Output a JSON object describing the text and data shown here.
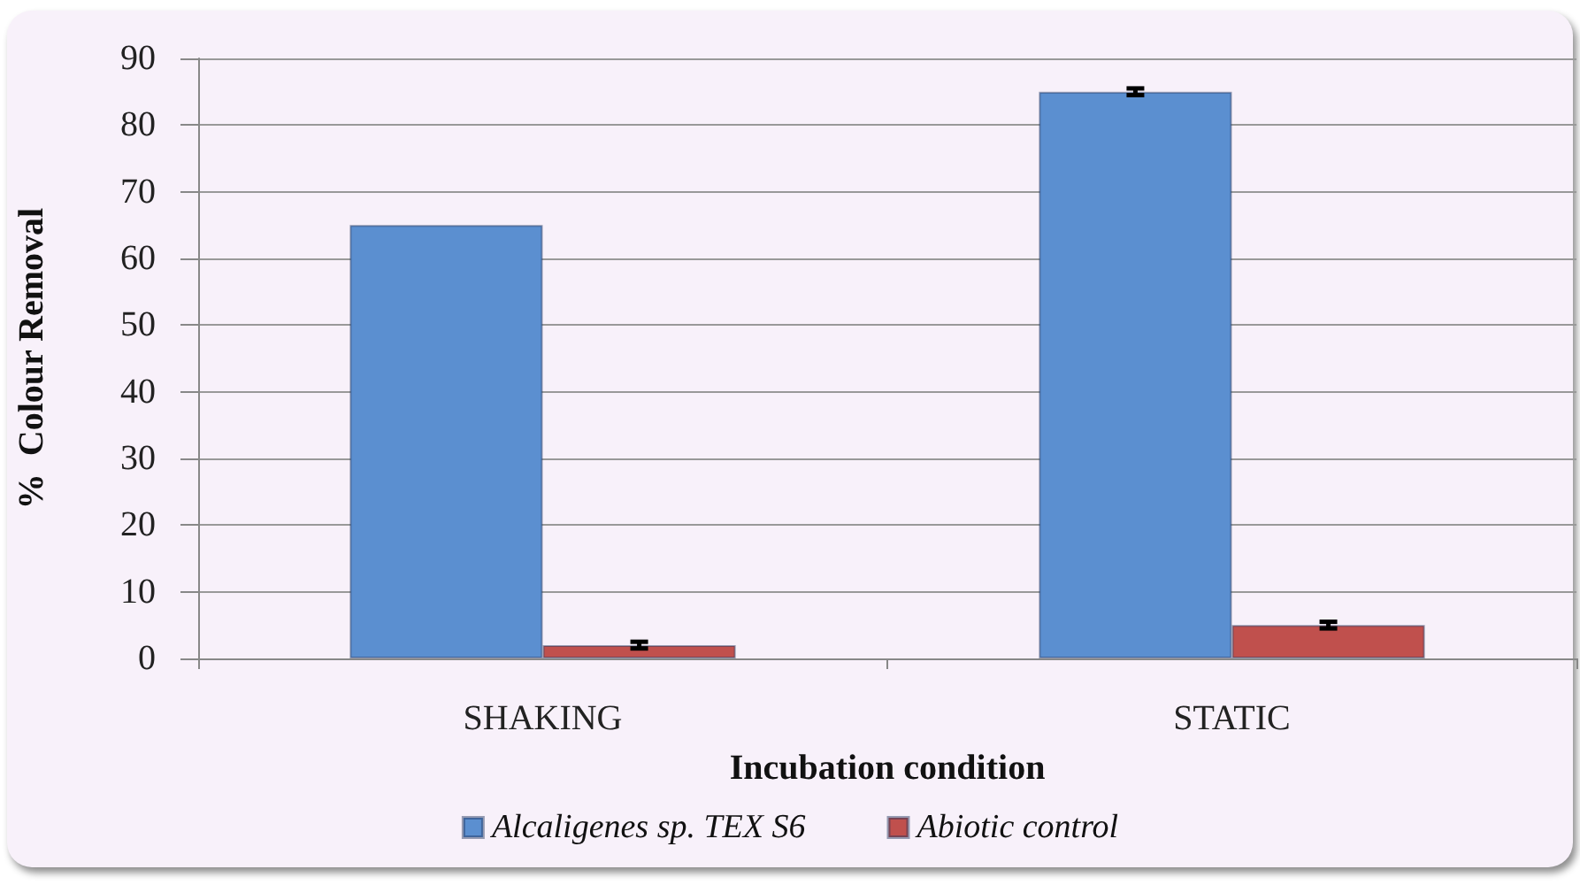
{
  "chart_data": {
    "type": "bar",
    "xlabel": "Incubation condition",
    "ylabel": "%  Colour Removal",
    "categories": [
      "SHAKING",
      "STATIC"
    ],
    "series": [
      {
        "name": "Alcaligenes sp. TEX S6",
        "color": "#5b8fd0",
        "values": [
          65,
          85
        ],
        "errors": [
          null,
          0.5
        ]
      },
      {
        "name": "Abiotic control",
        "color": "#c0504d",
        "values": [
          2,
          5
        ],
        "errors": [
          0.5,
          0.5
        ]
      }
    ],
    "ylim": [
      0,
      90
    ],
    "yticks": [
      0,
      10,
      20,
      30,
      40,
      50,
      60,
      70,
      80,
      90
    ],
    "grid": "y",
    "legend": "bottom"
  }
}
